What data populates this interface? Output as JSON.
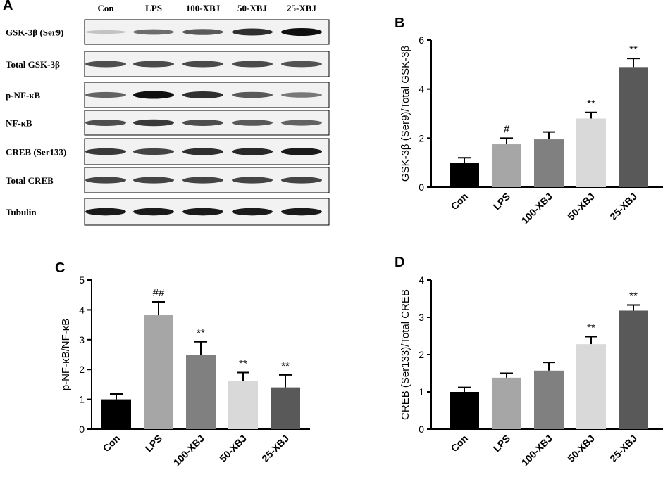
{
  "panel_a": {
    "letter": "A",
    "lanes": [
      "Con",
      "LPS",
      "100-XBJ",
      "50-XBJ",
      "25-XBJ"
    ],
    "rows": [
      {
        "label": "GSK-3β (Ser9)",
        "intensity": [
          0.15,
          0.55,
          0.65,
          0.85,
          1.0
        ]
      },
      {
        "label": "Total GSK-3β",
        "intensity": [
          0.7,
          0.72,
          0.72,
          0.72,
          0.68
        ]
      },
      {
        "label": "p-NF-κB",
        "intensity": [
          0.6,
          1.0,
          0.85,
          0.65,
          0.5
        ]
      },
      {
        "label": "NF-κB",
        "intensity": [
          0.7,
          0.8,
          0.7,
          0.65,
          0.6
        ]
      },
      {
        "label": "CREB (Ser133)",
        "intensity": [
          0.8,
          0.75,
          0.85,
          0.88,
          0.95
        ]
      },
      {
        "label": "Total CREB",
        "intensity": [
          0.75,
          0.75,
          0.75,
          0.75,
          0.75
        ]
      },
      {
        "label": "Tubulin",
        "intensity": [
          0.95,
          0.95,
          0.95,
          0.95,
          0.95
        ]
      }
    ]
  },
  "chart_data": [
    {
      "panel": "B",
      "type": "bar",
      "categories": [
        "Con",
        "LPS",
        "100-XBJ",
        "50-XBJ",
        "25-XBJ"
      ],
      "values": [
        1.0,
        1.75,
        1.95,
        2.8,
        4.9
      ],
      "errors": [
        0.2,
        0.25,
        0.3,
        0.25,
        0.35
      ],
      "annotations": [
        "",
        "#",
        "",
        "**",
        "**"
      ],
      "colors": [
        "#000000",
        "#a6a6a6",
        "#808080",
        "#d9d9d9",
        "#595959"
      ],
      "ylabel": "GSK-3β (Ser9)/Total GSK-3β",
      "ylim": [
        0,
        6
      ],
      "yticks": [
        0,
        2,
        4,
        6
      ]
    },
    {
      "panel": "C",
      "type": "bar",
      "categories": [
        "Con",
        "LPS",
        "100-XBJ",
        "50-XBJ",
        "25-XBJ"
      ],
      "values": [
        1.0,
        3.82,
        2.48,
        1.62,
        1.4
      ],
      "errors": [
        0.18,
        0.45,
        0.45,
        0.28,
        0.42
      ],
      "annotations": [
        "",
        "##",
        "**",
        "**",
        "**"
      ],
      "colors": [
        "#000000",
        "#a6a6a6",
        "#808080",
        "#d9d9d9",
        "#595959"
      ],
      "ylabel": "p-NF-κB/NF-κB",
      "ylim": [
        0,
        5
      ],
      "yticks": [
        0,
        1,
        2,
        3,
        4,
        5
      ]
    },
    {
      "panel": "D",
      "type": "bar",
      "categories": [
        "Con",
        "LPS",
        "100-XBJ",
        "50-XBJ",
        "25-XBJ"
      ],
      "values": [
        1.0,
        1.38,
        1.57,
        2.28,
        3.18
      ],
      "errors": [
        0.12,
        0.12,
        0.22,
        0.2,
        0.15
      ],
      "annotations": [
        "",
        "",
        "",
        "**",
        "**"
      ],
      "colors": [
        "#000000",
        "#a6a6a6",
        "#808080",
        "#d9d9d9",
        "#595959"
      ],
      "ylabel": "CREB (Ser133)/Total CREB",
      "ylim": [
        0,
        4
      ],
      "yticks": [
        0,
        1,
        2,
        3,
        4
      ]
    }
  ]
}
